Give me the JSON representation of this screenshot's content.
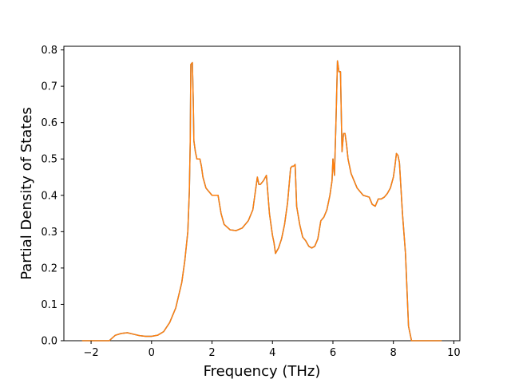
{
  "chart_data": {
    "type": "line",
    "title": "",
    "xlabel": "Frequency (THz)",
    "ylabel": "Partial Density of States",
    "xlim": [
      -2.9,
      10.2
    ],
    "ylim": [
      0.0,
      0.81
    ],
    "xticks": [
      -2,
      0,
      2,
      4,
      6,
      8,
      10
    ],
    "xtick_labels": [
      "−2",
      "0",
      "2",
      "4",
      "6",
      "8",
      "10"
    ],
    "yticks": [
      0.0,
      0.1,
      0.2,
      0.3,
      0.4,
      0.5,
      0.6,
      0.7,
      0.8
    ],
    "ytick_labels": [
      "0.0",
      "0.1",
      "0.2",
      "0.3",
      "0.4",
      "0.5",
      "0.6",
      "0.7",
      "0.8"
    ],
    "grid": false,
    "legend": "none",
    "series": [
      {
        "color": "#1f77b4",
        "x": [
          -2.3,
          -1.4,
          -1.2,
          -1.0,
          -0.8,
          -0.6,
          -0.4,
          -0.2,
          0.0,
          0.2,
          0.4,
          0.6,
          0.8,
          1.0,
          1.1,
          1.2,
          1.25,
          1.28,
          1.3,
          1.35,
          1.38,
          1.4,
          1.45,
          1.5,
          1.6,
          1.65,
          1.7,
          1.8,
          2.0,
          2.2,
          2.3,
          2.4,
          2.6,
          2.8,
          3.0,
          3.2,
          3.35,
          3.45,
          3.5,
          3.55,
          3.6,
          3.7,
          3.8,
          3.9,
          4.0,
          4.05,
          4.1,
          4.2,
          4.3,
          4.4,
          4.5,
          4.6,
          4.65,
          4.7,
          4.75,
          4.8,
          4.9,
          5.0,
          5.1,
          5.2,
          5.3,
          5.4,
          5.5,
          5.6,
          5.7,
          5.8,
          5.9,
          5.97,
          6.0,
          6.05,
          6.1,
          6.15,
          6.2,
          6.25,
          6.3,
          6.35,
          6.4,
          6.45,
          6.5,
          6.6,
          6.7,
          6.8,
          7.0,
          7.2,
          7.3,
          7.4,
          7.5,
          7.6,
          7.7,
          7.8,
          7.9,
          8.0,
          8.05,
          8.1,
          8.15,
          8.2,
          8.3,
          8.4,
          8.5,
          8.6,
          8.65,
          8.7,
          9.6
        ],
        "y": [
          0.0,
          0.0,
          0.015,
          0.02,
          0.022,
          0.018,
          0.014,
          0.012,
          0.012,
          0.015,
          0.025,
          0.05,
          0.09,
          0.16,
          0.22,
          0.3,
          0.41,
          0.55,
          0.76,
          0.765,
          0.66,
          0.55,
          0.52,
          0.5,
          0.5,
          0.48,
          0.45,
          0.42,
          0.4,
          0.4,
          0.35,
          0.32,
          0.305,
          0.303,
          0.31,
          0.33,
          0.36,
          0.42,
          0.45,
          0.43,
          0.43,
          0.44,
          0.455,
          0.35,
          0.29,
          0.27,
          0.24,
          0.255,
          0.28,
          0.32,
          0.38,
          0.475,
          0.48,
          0.48,
          0.485,
          0.37,
          0.32,
          0.285,
          0.275,
          0.26,
          0.255,
          0.26,
          0.28,
          0.33,
          0.34,
          0.36,
          0.4,
          0.44,
          0.5,
          0.455,
          0.6,
          0.77,
          0.74,
          0.74,
          0.52,
          0.57,
          0.57,
          0.54,
          0.5,
          0.46,
          0.44,
          0.42,
          0.4,
          0.395,
          0.375,
          0.37,
          0.39,
          0.39,
          0.395,
          0.405,
          0.42,
          0.45,
          0.48,
          0.515,
          0.51,
          0.49,
          0.35,
          0.24,
          0.04,
          0.0,
          0.0,
          0.0,
          0.0
        ]
      },
      {
        "color": "#ff7f0e",
        "x": [
          -2.3,
          -1.4,
          -1.2,
          -1.0,
          -0.8,
          -0.6,
          -0.4,
          -0.2,
          0.0,
          0.2,
          0.4,
          0.6,
          0.8,
          1.0,
          1.1,
          1.2,
          1.25,
          1.28,
          1.3,
          1.35,
          1.38,
          1.4,
          1.45,
          1.5,
          1.6,
          1.65,
          1.7,
          1.8,
          2.0,
          2.2,
          2.3,
          2.4,
          2.6,
          2.8,
          3.0,
          3.2,
          3.35,
          3.45,
          3.5,
          3.55,
          3.6,
          3.7,
          3.8,
          3.9,
          4.0,
          4.05,
          4.1,
          4.2,
          4.3,
          4.4,
          4.5,
          4.6,
          4.65,
          4.7,
          4.75,
          4.8,
          4.9,
          5.0,
          5.1,
          5.2,
          5.3,
          5.4,
          5.5,
          5.6,
          5.7,
          5.8,
          5.9,
          5.97,
          6.0,
          6.05,
          6.1,
          6.15,
          6.2,
          6.25,
          6.3,
          6.35,
          6.4,
          6.45,
          6.5,
          6.6,
          6.7,
          6.8,
          7.0,
          7.2,
          7.3,
          7.4,
          7.5,
          7.6,
          7.7,
          7.8,
          7.9,
          8.0,
          8.05,
          8.1,
          8.15,
          8.2,
          8.3,
          8.4,
          8.5,
          8.6,
          8.65,
          8.7,
          9.6
        ],
        "y": [
          0.0,
          0.0,
          0.015,
          0.02,
          0.022,
          0.018,
          0.014,
          0.012,
          0.012,
          0.015,
          0.025,
          0.05,
          0.09,
          0.16,
          0.22,
          0.3,
          0.41,
          0.55,
          0.76,
          0.765,
          0.66,
          0.55,
          0.52,
          0.5,
          0.5,
          0.48,
          0.45,
          0.42,
          0.4,
          0.4,
          0.35,
          0.32,
          0.305,
          0.303,
          0.31,
          0.33,
          0.36,
          0.42,
          0.45,
          0.43,
          0.43,
          0.44,
          0.455,
          0.35,
          0.29,
          0.27,
          0.24,
          0.255,
          0.28,
          0.32,
          0.38,
          0.475,
          0.48,
          0.48,
          0.485,
          0.37,
          0.32,
          0.285,
          0.275,
          0.26,
          0.255,
          0.26,
          0.28,
          0.33,
          0.34,
          0.36,
          0.4,
          0.44,
          0.5,
          0.455,
          0.6,
          0.77,
          0.74,
          0.74,
          0.52,
          0.57,
          0.57,
          0.54,
          0.5,
          0.46,
          0.44,
          0.42,
          0.4,
          0.395,
          0.375,
          0.37,
          0.39,
          0.39,
          0.395,
          0.405,
          0.42,
          0.45,
          0.48,
          0.515,
          0.51,
          0.49,
          0.35,
          0.24,
          0.04,
          0.0,
          0.0,
          0.0,
          0.0
        ]
      }
    ]
  }
}
